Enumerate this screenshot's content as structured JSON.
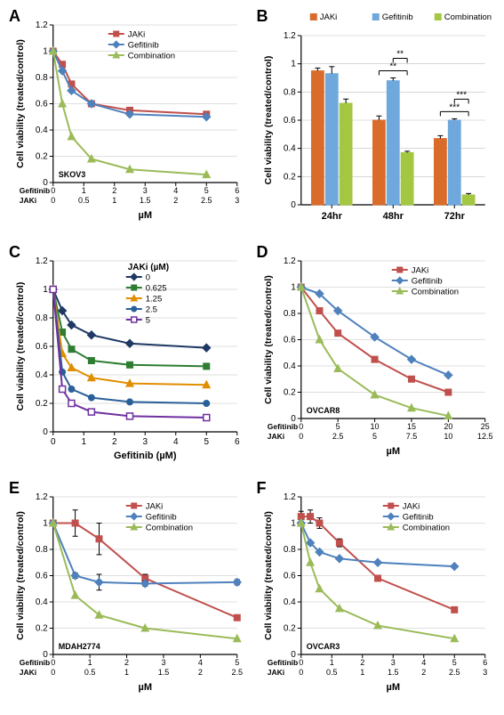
{
  "colors": {
    "jaki": "#c0504d",
    "gefitinib": "#4f81bd",
    "combination": "#9bbb59",
    "jaki_bar": "#d96c2a",
    "gefitinib_bar": "#6ea8dc",
    "combination_bar": "#a3c740",
    "axis": "#000000",
    "grid": "#bfbfbf",
    "c0": "#1f3864",
    "c0625": "#2e7d32",
    "c125": "#e08e00",
    "c25": "#2a6099",
    "c5": "#7030a0"
  },
  "panelA": {
    "type": "line",
    "panel_letter": "A",
    "ylabel": "Cell viability (treated/control)",
    "xlabel": "µM",
    "x_sublabels": [
      "Gefitinib",
      "JAKi"
    ],
    "cell_line": "SKOV3",
    "ylim": [
      0,
      1.2
    ],
    "ytick_step": 0.2,
    "xlim": [
      0,
      6
    ],
    "xtick_step": 1,
    "x_sub_ticks": [
      [
        0,
        1,
        2,
        3,
        4,
        5,
        6
      ],
      [
        0,
        0.5,
        1,
        1.5,
        2,
        2.5,
        3
      ]
    ],
    "series": [
      {
        "name": "JAKi",
        "color": "#c0504d",
        "marker": "square",
        "x": [
          0,
          0.3,
          0.6,
          1.25,
          2.5,
          5
        ],
        "y": [
          1.0,
          0.9,
          0.75,
          0.6,
          0.55,
          0.52
        ]
      },
      {
        "name": "Gefitinib",
        "color": "#4f81bd",
        "marker": "diamond",
        "x": [
          0,
          0.3,
          0.6,
          1.25,
          2.5,
          5
        ],
        "y": [
          1.0,
          0.85,
          0.7,
          0.6,
          0.52,
          0.5
        ]
      },
      {
        "name": "Combination",
        "color": "#9bbb59",
        "marker": "triangle",
        "x": [
          0,
          0.3,
          0.6,
          1.25,
          2.5,
          5
        ],
        "y": [
          1.0,
          0.6,
          0.35,
          0.18,
          0.1,
          0.06
        ]
      }
    ]
  },
  "panelB": {
    "type": "bar",
    "panel_letter": "B",
    "ylabel": "Cell viability (treated/control)",
    "categories": [
      "24hr",
      "48hr",
      "72hr"
    ],
    "ylim": [
      0,
      1.2
    ],
    "ytick_step": 0.2,
    "series": [
      {
        "name": "JAKi",
        "color": "#d96c2a",
        "values": [
          0.95,
          0.6,
          0.47
        ],
        "err": [
          0.02,
          0.03,
          0.02
        ]
      },
      {
        "name": "Gefitinib",
        "color": "#6ea8dc",
        "values": [
          0.93,
          0.88,
          0.6
        ],
        "err": [
          0.05,
          0.02,
          0.01
        ]
      },
      {
        "name": "Combination",
        "color": "#a3c740",
        "values": [
          0.72,
          0.37,
          0.07
        ],
        "err": [
          0.03,
          0.01,
          0.01
        ]
      }
    ],
    "sig": [
      {
        "g": 1,
        "pairs": [
          [
            0,
            2,
            "**"
          ],
          [
            1,
            2,
            "**"
          ]
        ]
      },
      {
        "g": 2,
        "pairs": [
          [
            0,
            2,
            "***"
          ],
          [
            1,
            2,
            "***"
          ]
        ]
      }
    ]
  },
  "panelC": {
    "type": "line",
    "panel_letter": "C",
    "ylabel": "Cell viability (treated/control)",
    "xlabel": "Gefitinib (µM)",
    "legend_title": "JAKi (µM)",
    "ylim": [
      0,
      1.2
    ],
    "ytick_step": 0.2,
    "xlim": [
      0,
      6
    ],
    "xtick_step": 1,
    "series": [
      {
        "name": "0",
        "color": "#1f3864",
        "marker": "diamond",
        "x": [
          0,
          0.3,
          0.6,
          1.25,
          2.5,
          5
        ],
        "y": [
          1.0,
          0.85,
          0.75,
          0.68,
          0.62,
          0.59
        ]
      },
      {
        "name": "0.625",
        "color": "#2e7d32",
        "marker": "square",
        "x": [
          0,
          0.3,
          0.6,
          1.25,
          2.5,
          5
        ],
        "y": [
          1.0,
          0.7,
          0.58,
          0.5,
          0.47,
          0.46
        ]
      },
      {
        "name": "1.25",
        "color": "#e08e00",
        "marker": "triangle",
        "x": [
          0,
          0.3,
          0.6,
          1.25,
          2.5,
          5
        ],
        "y": [
          1.0,
          0.55,
          0.45,
          0.38,
          0.34,
          0.33
        ]
      },
      {
        "name": "2.5",
        "color": "#2a6099",
        "marker": "circle",
        "x": [
          0,
          0.3,
          0.6,
          1.25,
          2.5,
          5
        ],
        "y": [
          1.0,
          0.42,
          0.3,
          0.24,
          0.21,
          0.2
        ]
      },
      {
        "name": "5",
        "color": "#7030a0",
        "marker": "square-open",
        "x": [
          0,
          0.3,
          0.6,
          1.25,
          2.5,
          5
        ],
        "y": [
          1.0,
          0.3,
          0.2,
          0.14,
          0.11,
          0.1
        ]
      }
    ]
  },
  "panelD": {
    "type": "line",
    "panel_letter": "D",
    "ylabel": "Cell viability (treated/control)",
    "xlabel": "µM",
    "x_sublabels": [
      "Gefitinib",
      "JAKi"
    ],
    "cell_line": "OVCAR8",
    "ylim": [
      0,
      1.2
    ],
    "ytick_step": 0.2,
    "xlim": [
      0,
      25
    ],
    "xtick_step": 5,
    "x_sub_ticks": [
      [
        0,
        5,
        10,
        15,
        20,
        25
      ],
      [
        0,
        2.5,
        5,
        7.5,
        10,
        12.5
      ]
    ],
    "series": [
      {
        "name": "JAKi",
        "color": "#c0504d",
        "marker": "square",
        "x": [
          0,
          2.5,
          5,
          10,
          15,
          20
        ],
        "y": [
          1.0,
          0.82,
          0.65,
          0.45,
          0.3,
          0.2
        ]
      },
      {
        "name": "Gefitinib",
        "color": "#4f81bd",
        "marker": "diamond",
        "x": [
          0,
          2.5,
          5,
          10,
          15,
          20
        ],
        "y": [
          1.0,
          0.95,
          0.82,
          0.62,
          0.45,
          0.33
        ]
      },
      {
        "name": "Combination",
        "color": "#9bbb59",
        "marker": "triangle",
        "x": [
          0,
          2.5,
          5,
          10,
          15,
          20
        ],
        "y": [
          1.0,
          0.6,
          0.38,
          0.18,
          0.08,
          0.02
        ]
      }
    ]
  },
  "panelE": {
    "type": "line",
    "panel_letter": "E",
    "ylabel": "Cell viability (treated/control)",
    "xlabel": "µM",
    "x_sublabels": [
      "Gefitinib",
      "JAKi"
    ],
    "cell_line": "MDAH2774",
    "ylim": [
      0,
      1.2
    ],
    "ytick_step": 0.2,
    "xlim": [
      0,
      5
    ],
    "xtick_step": 1,
    "x_sub_ticks": [
      [
        0,
        1,
        2,
        3,
        4,
        5
      ],
      [
        0,
        0.5,
        1,
        1.5,
        2,
        2.5
      ]
    ],
    "series": [
      {
        "name": "JAKi",
        "color": "#c0504d",
        "marker": "square",
        "x": [
          0,
          0.6,
          1.25,
          2.5,
          5
        ],
        "y": [
          1.0,
          1.0,
          0.88,
          0.58,
          0.28
        ],
        "err": [
          0,
          0.1,
          0.12,
          0.03,
          0.02
        ]
      },
      {
        "name": "Gefitinib",
        "color": "#4f81bd",
        "marker": "diamond",
        "x": [
          0,
          0.6,
          1.25,
          2.5,
          5
        ],
        "y": [
          1.0,
          0.6,
          0.55,
          0.54,
          0.55
        ],
        "err": [
          0,
          0.02,
          0.06,
          0.02,
          0.02
        ]
      },
      {
        "name": "Combination",
        "color": "#9bbb59",
        "marker": "triangle",
        "x": [
          0,
          0.6,
          1.25,
          2.5,
          5
        ],
        "y": [
          1.0,
          0.45,
          0.3,
          0.2,
          0.12
        ]
      }
    ]
  },
  "panelF": {
    "type": "line",
    "panel_letter": "F",
    "ylabel": "Cell viability (treated/control)",
    "xlabel": "µM",
    "x_sublabels": [
      "Gefitinib",
      "JAKi"
    ],
    "cell_line": "OVCAR3",
    "ylim": [
      0,
      1.2
    ],
    "ytick_step": 0.2,
    "xlim": [
      0,
      6
    ],
    "xtick_step": 1,
    "x_sub_ticks": [
      [
        0,
        1,
        2,
        3,
        4,
        5,
        6
      ],
      [
        0,
        0.5,
        1,
        1.5,
        2,
        2.5,
        3
      ]
    ],
    "series": [
      {
        "name": "JAKi",
        "color": "#c0504d",
        "marker": "square",
        "x": [
          0,
          0.3,
          0.6,
          1.25,
          2.5,
          5
        ],
        "y": [
          1.05,
          1.05,
          1.0,
          0.85,
          0.58,
          0.34
        ],
        "err": [
          0.04,
          0.05,
          0.04,
          0.03,
          0.02,
          0.02
        ]
      },
      {
        "name": "Gefitinib",
        "color": "#4f81bd",
        "marker": "diamond",
        "x": [
          0,
          0.3,
          0.6,
          1.25,
          2.5,
          5
        ],
        "y": [
          1.0,
          0.85,
          0.78,
          0.73,
          0.7,
          0.67
        ]
      },
      {
        "name": "Combination",
        "color": "#9bbb59",
        "marker": "triangle",
        "x": [
          0,
          0.3,
          0.6,
          1.25,
          2.5,
          5
        ],
        "y": [
          1.0,
          0.7,
          0.5,
          0.35,
          0.22,
          0.12
        ]
      }
    ]
  }
}
